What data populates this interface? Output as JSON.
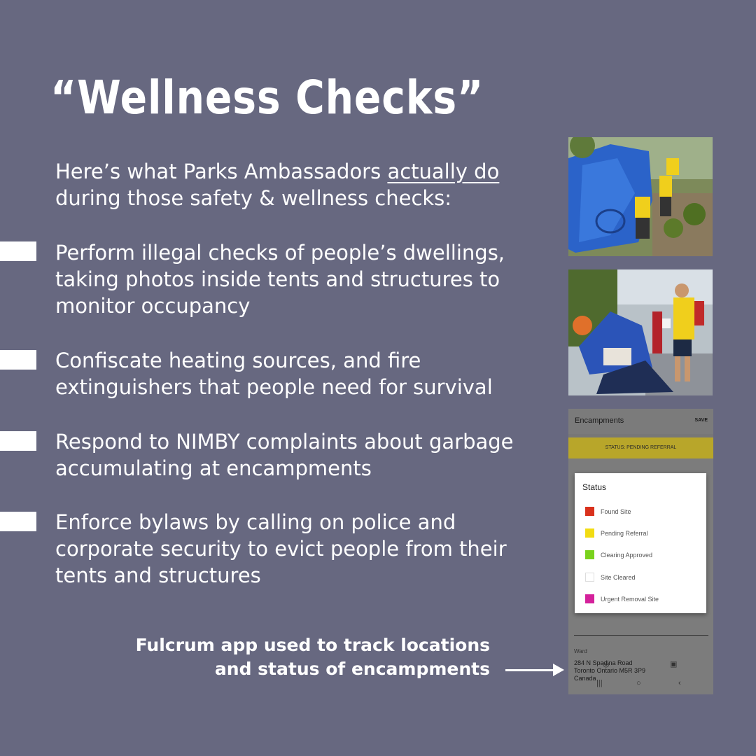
{
  "title": "“Wellness Checks”",
  "intro": {
    "before": "Here’s what Parks Ambassadors ",
    "emphasis": "actually do",
    "after": "during those safety & wellness checks:"
  },
  "bullets": [
    "Perform illegal checks of people’s dwellings, taking photos inside tents and structures to monitor occupancy",
    "Confiscate heating sources, and fire extinguishers that people need for survival",
    "Respond to NIMBY complaints about garbage accumulating at encampments",
    "Enforce bylaws by calling on police and corporate security to evict people from their tents and structures"
  ],
  "caption": {
    "line1": "Fulcrum app used to track locations",
    "line2": "and status of encampments"
  },
  "app": {
    "title": "Encampments",
    "save": "SAVE",
    "status_banner": "STATUS: PENDING REFERRAL",
    "dialog_title": "Status",
    "options": [
      {
        "label": "Found Site",
        "color": "#d9311c"
      },
      {
        "label": "Pending Referral",
        "color": "#f2dc13"
      },
      {
        "label": "Clearing Approved",
        "color": "#79d21c"
      },
      {
        "label": "Site Cleared",
        "color": "#ffffff"
      },
      {
        "label": "Urgent Removal Site",
        "color": "#d4219b"
      }
    ],
    "address": [
      "284 N Spadina Road",
      "Toronto Ontario M5R 3P9",
      "Canada"
    ],
    "ward_label": "Ward"
  },
  "colors": {
    "background": "#676880",
    "text": "#ffffff"
  }
}
